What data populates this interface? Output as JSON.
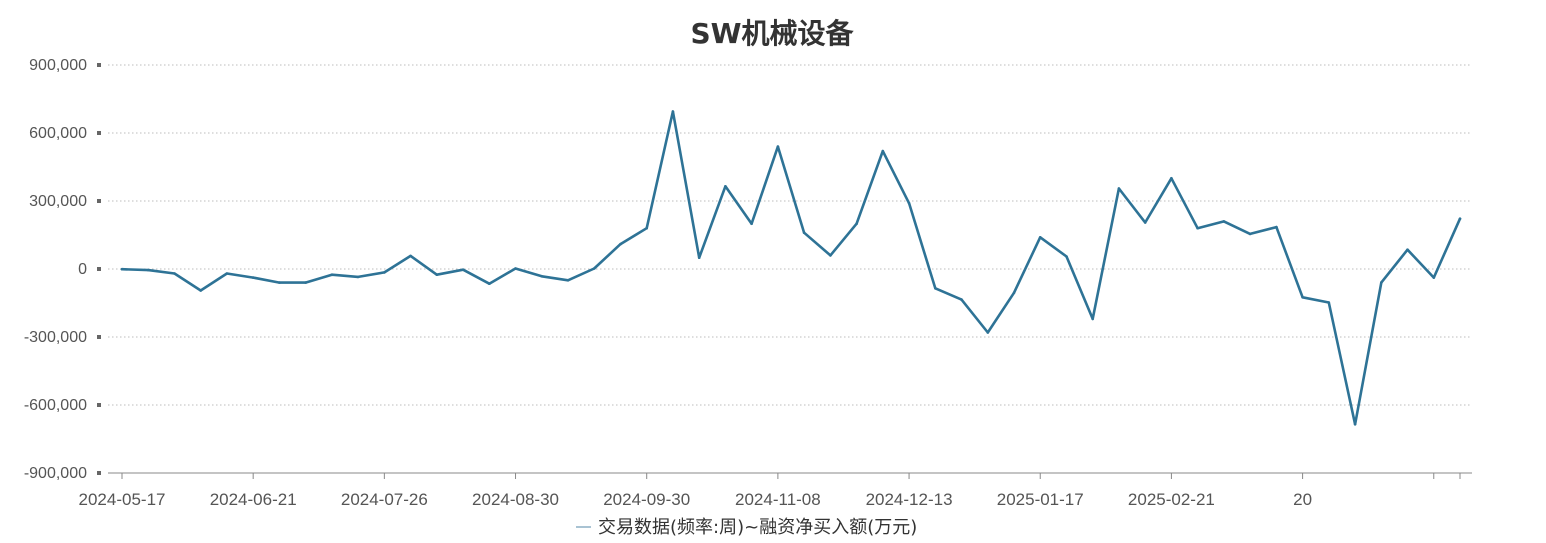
{
  "chart_data": {
    "type": "line",
    "title": "SW机械设备",
    "ylim": [
      -900000,
      900000
    ],
    "yticks": [
      -900000,
      -600000,
      -300000,
      0,
      300000,
      600000,
      900000
    ],
    "ytick_labels": [
      "-900,000",
      "-600,000",
      "-300,000",
      "0",
      "300,000",
      "600,000",
      "900,000"
    ],
    "xtick_labels": [
      "2024-05-17",
      "2024-06-21",
      "2024-07-26",
      "2024-08-30",
      "2024-09-30",
      "2024-11-08",
      "2024-12-13",
      "2025-01-17",
      "2025-02-21",
      "20"
    ],
    "xtick_indices": [
      0,
      5,
      10,
      15,
      20,
      25,
      30,
      35,
      40,
      45
    ],
    "x": [
      "2024-05-17",
      "2024-05-24",
      "2024-05-31",
      "2024-06-07",
      "2024-06-14",
      "2024-06-21",
      "2024-06-28",
      "2024-07-05",
      "2024-07-12",
      "2024-07-19",
      "2024-07-26",
      "2024-08-02",
      "2024-08-09",
      "2024-08-16",
      "2024-08-23",
      "2024-08-30",
      "2024-09-06",
      "2024-09-13",
      "2024-09-20",
      "2024-09-27",
      "2024-09-30",
      "2024-10-11",
      "2024-10-18",
      "2024-10-25",
      "2024-11-01",
      "2024-11-08",
      "2024-11-15",
      "2024-11-22",
      "2024-11-29",
      "2024-12-06",
      "2024-12-13",
      "2024-12-20",
      "2024-12-27",
      "2025-01-03",
      "2025-01-10",
      "2025-01-17",
      "2025-01-24",
      "2025-01-31",
      "2025-02-07",
      "2025-02-14",
      "2025-02-21",
      "2025-02-28",
      "2025-03-07",
      "2025-03-14",
      "2025-03-21",
      "2025-03-28",
      "2025-04-04",
      "2025-04-11",
      "2025-04-18",
      "2025-04-25",
      "2025-05-02",
      "2025-05-09"
    ],
    "series": [
      {
        "name": "交易数据(频率:周)~融资净买入额(万元)",
        "color": "#2e7396",
        "values": [
          -1000,
          -5000,
          -20000,
          -95000,
          -20000,
          -38000,
          -60000,
          -60000,
          -25000,
          -35000,
          -15000,
          58000,
          -25000,
          -3000,
          -65000,
          2000,
          -32000,
          -50000,
          2000,
          110000,
          180000,
          695000,
          50000,
          365000,
          200000,
          540000,
          160000,
          60000,
          200000,
          520000,
          290000,
          -85000,
          -135000,
          -280000,
          -105000,
          140000,
          55000,
          -220000,
          355000,
          205000,
          400000,
          180000,
          210000,
          155000,
          185000,
          -125000,
          -148000,
          -685000,
          -60000,
          85000,
          -38000,
          222000
        ]
      }
    ],
    "grid": true,
    "legend_position": "bottom-center"
  }
}
